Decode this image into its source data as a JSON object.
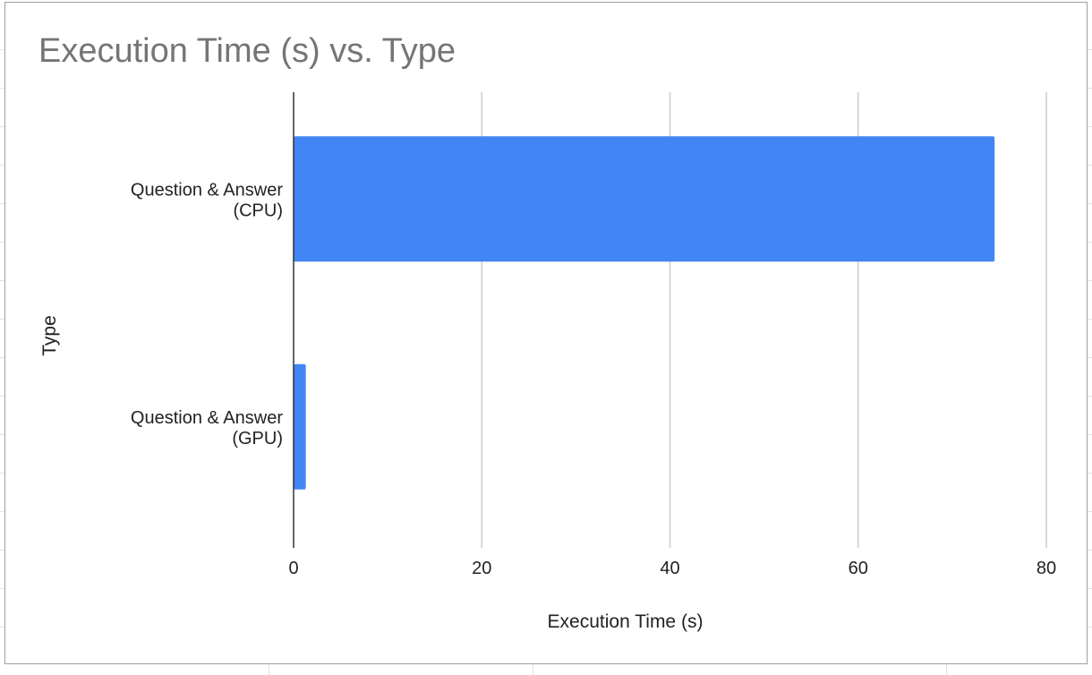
{
  "chart_data": {
    "type": "bar",
    "orientation": "horizontal",
    "title": "Execution Time (s) vs. Type",
    "xlabel": "Execution Time (s)",
    "ylabel": "Type",
    "categories": [
      [
        "Question & Answer",
        "(CPU)"
      ],
      [
        "Question & Answer",
        "(GPU)"
      ]
    ],
    "series": [
      {
        "values": [
          74.5,
          1.3
        ],
        "color": "#4285f4"
      }
    ],
    "xlim": [
      0,
      80
    ],
    "xticks": [
      0,
      20,
      40,
      60,
      80
    ],
    "grid": true,
    "legend": "none"
  }
}
